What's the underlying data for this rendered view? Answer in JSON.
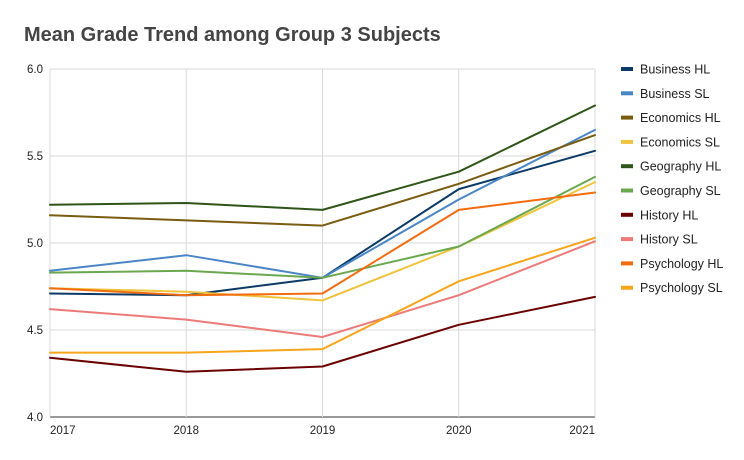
{
  "chart_data": {
    "type": "line",
    "title": "Mean Grade Trend among Group 3 Subjects",
    "xlabel": "",
    "ylabel": "",
    "x": [
      "2017",
      "2018",
      "2019",
      "2020",
      "2021"
    ],
    "ylim": [
      4.0,
      6.0
    ],
    "yticks": [
      "4.0",
      "4.5",
      "5.0",
      "5.5",
      "6.0"
    ],
    "grid": true,
    "legend_position": "right",
    "series": [
      {
        "name": "Business HL",
        "color": "#0b3a66",
        "values": [
          4.71,
          4.7,
          4.8,
          5.31,
          5.53
        ]
      },
      {
        "name": "Business SL",
        "color": "#4a86c6",
        "values": [
          4.84,
          4.93,
          4.8,
          5.25,
          5.65
        ]
      },
      {
        "name": "Economics HL",
        "color": "#7a5c10",
        "values": [
          5.16,
          5.13,
          5.1,
          5.34,
          5.62
        ]
      },
      {
        "name": "Economics SL",
        "color": "#f0c33c",
        "values": [
          4.74,
          4.72,
          4.67,
          4.98,
          5.35
        ]
      },
      {
        "name": "Geography HL",
        "color": "#2e5417",
        "values": [
          5.22,
          5.23,
          5.19,
          5.41,
          5.79
        ]
      },
      {
        "name": "Geography SL",
        "color": "#6aa84f",
        "values": [
          4.83,
          4.84,
          4.8,
          4.98,
          5.38
        ]
      },
      {
        "name": "History HL",
        "color": "#6b0000",
        "values": [
          4.34,
          4.26,
          4.29,
          4.53,
          4.69
        ]
      },
      {
        "name": "History SL",
        "color": "#ec7b78",
        "values": [
          4.62,
          4.56,
          4.46,
          4.7,
          5.01
        ]
      },
      {
        "name": "Psychology HL",
        "color": "#f26b0f",
        "values": [
          4.74,
          4.7,
          4.71,
          5.19,
          5.29
        ]
      },
      {
        "name": "Psychology SL",
        "color": "#f7a51b",
        "values": [
          4.37,
          4.37,
          4.39,
          4.78,
          5.03
        ]
      }
    ]
  }
}
